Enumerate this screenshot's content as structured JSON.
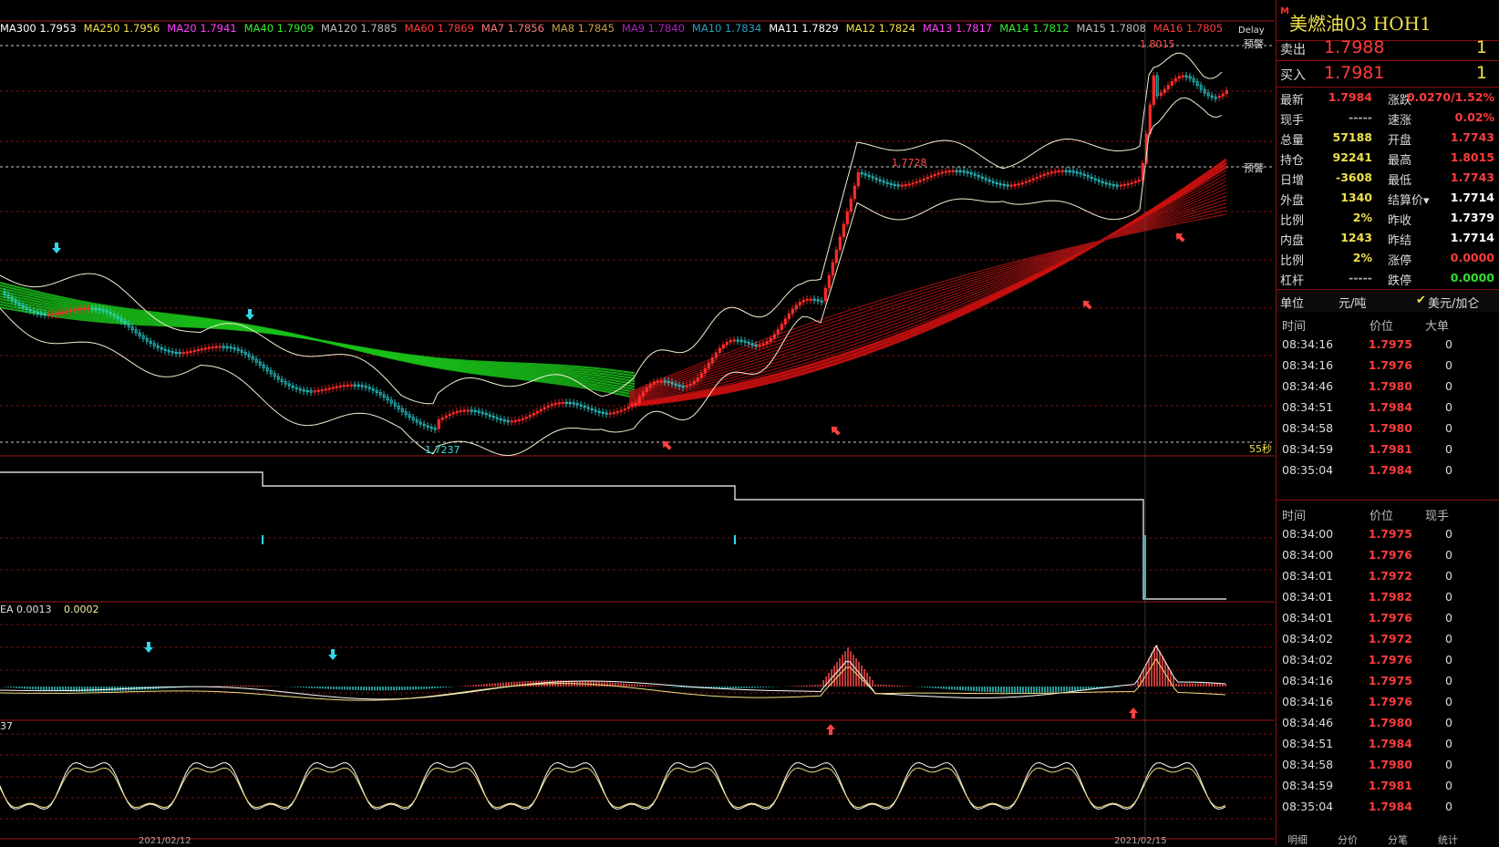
{
  "ma_legend": [
    {
      "text": "MA300 1.7953",
      "color": "#ffffff"
    },
    {
      "text": "MA250 1.7956",
      "color": "#f0e04a"
    },
    {
      "text": "MA20 1.7941",
      "color": "#ff44ff"
    },
    {
      "text": "MA40 1.7909",
      "color": "#33ee33"
    },
    {
      "text": "MA120 1.7885",
      "color": "#bbbbbb"
    },
    {
      "text": "MA60 1.7869",
      "color": "#ff3b3b"
    },
    {
      "text": "MA7 1.7856",
      "color": "#ff7777"
    },
    {
      "text": "MA8 1.7845",
      "color": "#c8a048"
    },
    {
      "text": "MA9 1.7840",
      "color": "#b020c0"
    },
    {
      "text": "MA10 1.7834",
      "color": "#2aa0c0"
    },
    {
      "text": "MA11 1.7829",
      "color": "#ffffff"
    },
    {
      "text": "MA12 1.7824",
      "color": "#f0e04a"
    },
    {
      "text": "MA13 1.7817",
      "color": "#ff44ff"
    },
    {
      "text": "MA14 1.7812",
      "color": "#33ee33"
    },
    {
      "text": "MA15 1.7808",
      "color": "#bbbbbb"
    },
    {
      "text": "MA16 1.7805",
      "color": "#ff3b3b"
    }
  ],
  "chart": {
    "delay_label": "Delay",
    "alert_top": "预警",
    "alert_mid": "预警",
    "high_label": "1.8015",
    "plateau_label": "1.7728",
    "low_label": "1.7237",
    "countdown": "55秒",
    "macd_label": "EA 0.0013",
    "macd_value": "0.0002",
    "kdj_label": "37",
    "date_left": "2021/02/12",
    "date_right": "2021/02/15"
  },
  "side": {
    "marker": "M",
    "title": "美燃油03  HOH1",
    "ask_label": "卖出",
    "ask_price": "1.7988",
    "ask_vol": "1",
    "bid_label": "买入",
    "bid_price": "1.7981",
    "bid_vol": "1",
    "stats": [
      {
        "l1": "最新",
        "v1": "1.7984",
        "c1": "red",
        "l2": "涨跌",
        "v2": "0.0270/1.52%",
        "c2": "red"
      },
      {
        "l1": "现手",
        "v1": "-----",
        "c1": "gry",
        "l2": "速涨",
        "v2": "0.02%",
        "c2": "red"
      },
      {
        "l1": "总量",
        "v1": "57188",
        "c1": "yel",
        "l2": "开盘",
        "v2": "1.7743",
        "c2": "red"
      },
      {
        "l1": "持仓",
        "v1": "92241",
        "c1": "yel",
        "l2": "最高",
        "v2": "1.8015",
        "c2": "red"
      },
      {
        "l1": "日增",
        "v1": "-3608",
        "c1": "yel",
        "l2": "最低",
        "v2": "1.7743",
        "c2": "red"
      },
      {
        "l1": "外盘",
        "v1": "1340",
        "c1": "yel",
        "l2": "结算价▾",
        "v2": "1.7714",
        "c2": "wht"
      },
      {
        "l1": "比例",
        "v1": "2%",
        "c1": "yel",
        "l2": "昨收",
        "v2": "1.7379",
        "c2": "wht"
      },
      {
        "l1": "内盘",
        "v1": "1243",
        "c1": "yel",
        "l2": "昨结",
        "v2": "1.7714",
        "c2": "wht"
      },
      {
        "l1": "比例",
        "v1": "2%",
        "c1": "yel",
        "l2": "涨停",
        "v2": "0.0000",
        "c2": "red"
      },
      {
        "l1": "杠杆",
        "v1": "-----",
        "c1": "gry",
        "l2": "跌停",
        "v2": "0.0000",
        "c2": "grn"
      }
    ],
    "unit_label": "单位",
    "unit_value": "元/吨",
    "unit_check": "✔",
    "unit_alt": "美元/加仑",
    "table1_headers": [
      "时间",
      "价位",
      "大单"
    ],
    "table1": [
      {
        "t": "08:34:16",
        "p": "1.7975",
        "v": "0"
      },
      {
        "t": "08:34:16",
        "p": "1.7976",
        "v": "0"
      },
      {
        "t": "08:34:46",
        "p": "1.7980",
        "v": "0"
      },
      {
        "t": "08:34:51",
        "p": "1.7984",
        "v": "0"
      },
      {
        "t": "08:34:58",
        "p": "1.7980",
        "v": "0"
      },
      {
        "t": "08:34:59",
        "p": "1.7981",
        "v": "0"
      },
      {
        "t": "08:35:04",
        "p": "1.7984",
        "v": "0"
      }
    ],
    "table2_headers": [
      "时间",
      "价位",
      "现手"
    ],
    "table2": [
      {
        "t": "08:34:00",
        "p": "1.7975",
        "v": "0"
      },
      {
        "t": "08:34:00",
        "p": "1.7976",
        "v": "0"
      },
      {
        "t": "08:34:01",
        "p": "1.7972",
        "v": "0"
      },
      {
        "t": "08:34:01",
        "p": "1.7982",
        "v": "0"
      },
      {
        "t": "08:34:01",
        "p": "1.7976",
        "v": "0"
      },
      {
        "t": "08:34:02",
        "p": "1.7972",
        "v": "0"
      },
      {
        "t": "08:34:02",
        "p": "1.7976",
        "v": "0"
      },
      {
        "t": "08:34:16",
        "p": "1.7975",
        "v": "0"
      },
      {
        "t": "08:34:16",
        "p": "1.7976",
        "v": "0"
      },
      {
        "t": "08:34:46",
        "p": "1.7980",
        "v": "0"
      },
      {
        "t": "08:34:51",
        "p": "1.7984",
        "v": "0"
      },
      {
        "t": "08:34:58",
        "p": "1.7980",
        "v": "0"
      },
      {
        "t": "08:34:59",
        "p": "1.7981",
        "v": "0"
      },
      {
        "t": "08:35:04",
        "p": "1.7984",
        "v": "0"
      }
    ],
    "tabs": [
      "明细",
      "分价",
      "分笔",
      "统计"
    ]
  }
}
